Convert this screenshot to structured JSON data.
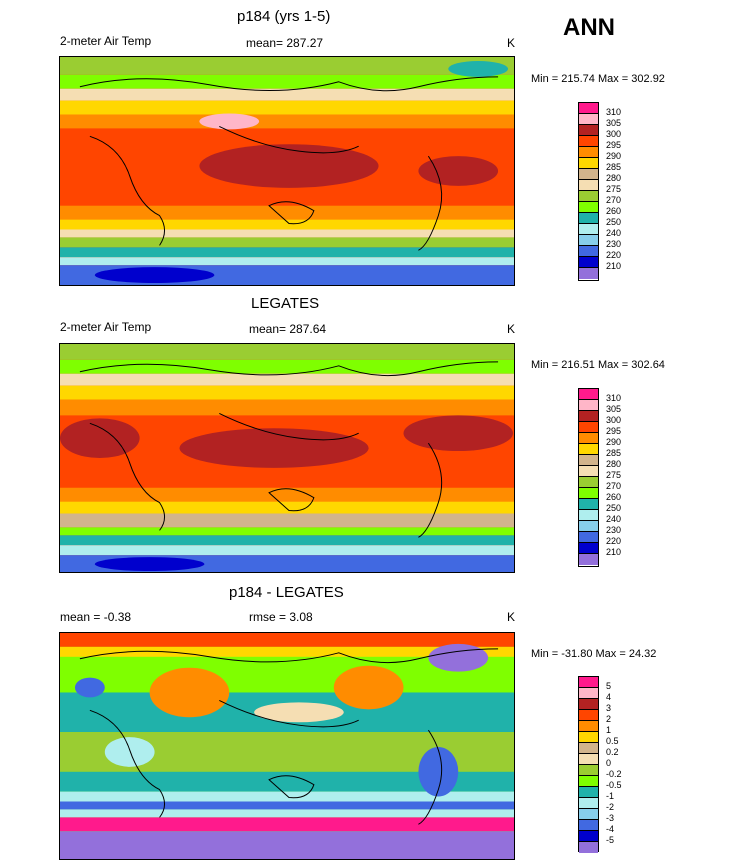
{
  "season": "ANN",
  "units": "K",
  "panels": [
    {
      "title": "p184 (yrs 1-5)",
      "left_label": "2-meter Air Temp",
      "center_label": "mean= 287.27",
      "right_label": "K",
      "minmax": "Min = 215.74 Max = 302.92"
    },
    {
      "title": "LEGATES",
      "left_label": "2-meter Air Temp",
      "center_label": "mean= 287.64",
      "right_label": "K",
      "minmax": "Min = 216.51 Max = 302.64"
    },
    {
      "title": "p184 - LEGATES",
      "left_label": "mean = -0.38",
      "center_label": "rmse = 3.08",
      "right_label": "K",
      "minmax": "Min = -31.80 Max = 24.32"
    }
  ],
  "temp_levels": [
    "310",
    "305",
    "300",
    "295",
    "290",
    "285",
    "280",
    "275",
    "270",
    "260",
    "250",
    "240",
    "230",
    "220",
    "210"
  ],
  "temp_colors": [
    "#ff1a8c",
    "#ffb6c8",
    "#b22222",
    "#ff4500",
    "#ff8c00",
    "#ffd700",
    "#d2b48c",
    "#f5deb3",
    "#9acd32",
    "#7fff00",
    "#20b2aa",
    "#afeeee",
    "#87ceeb",
    "#4169e1",
    "#0000cd",
    "#9370db"
  ],
  "diff_levels": [
    "5",
    "4",
    "3",
    "2",
    "1",
    "0.5",
    "0.2",
    "0",
    "-0.2",
    "-0.5",
    "-1",
    "-2",
    "-3",
    "-4",
    "-5"
  ],
  "diff_colors": [
    "#ff1a8c",
    "#ffb6c8",
    "#b22222",
    "#ff4500",
    "#ff8c00",
    "#ffd700",
    "#d2b48c",
    "#f5deb3",
    "#9acd32",
    "#7fff00",
    "#20b2aa",
    "#afeeee",
    "#87ceeb",
    "#4169e1",
    "#0000cd",
    "#9370db"
  ]
}
